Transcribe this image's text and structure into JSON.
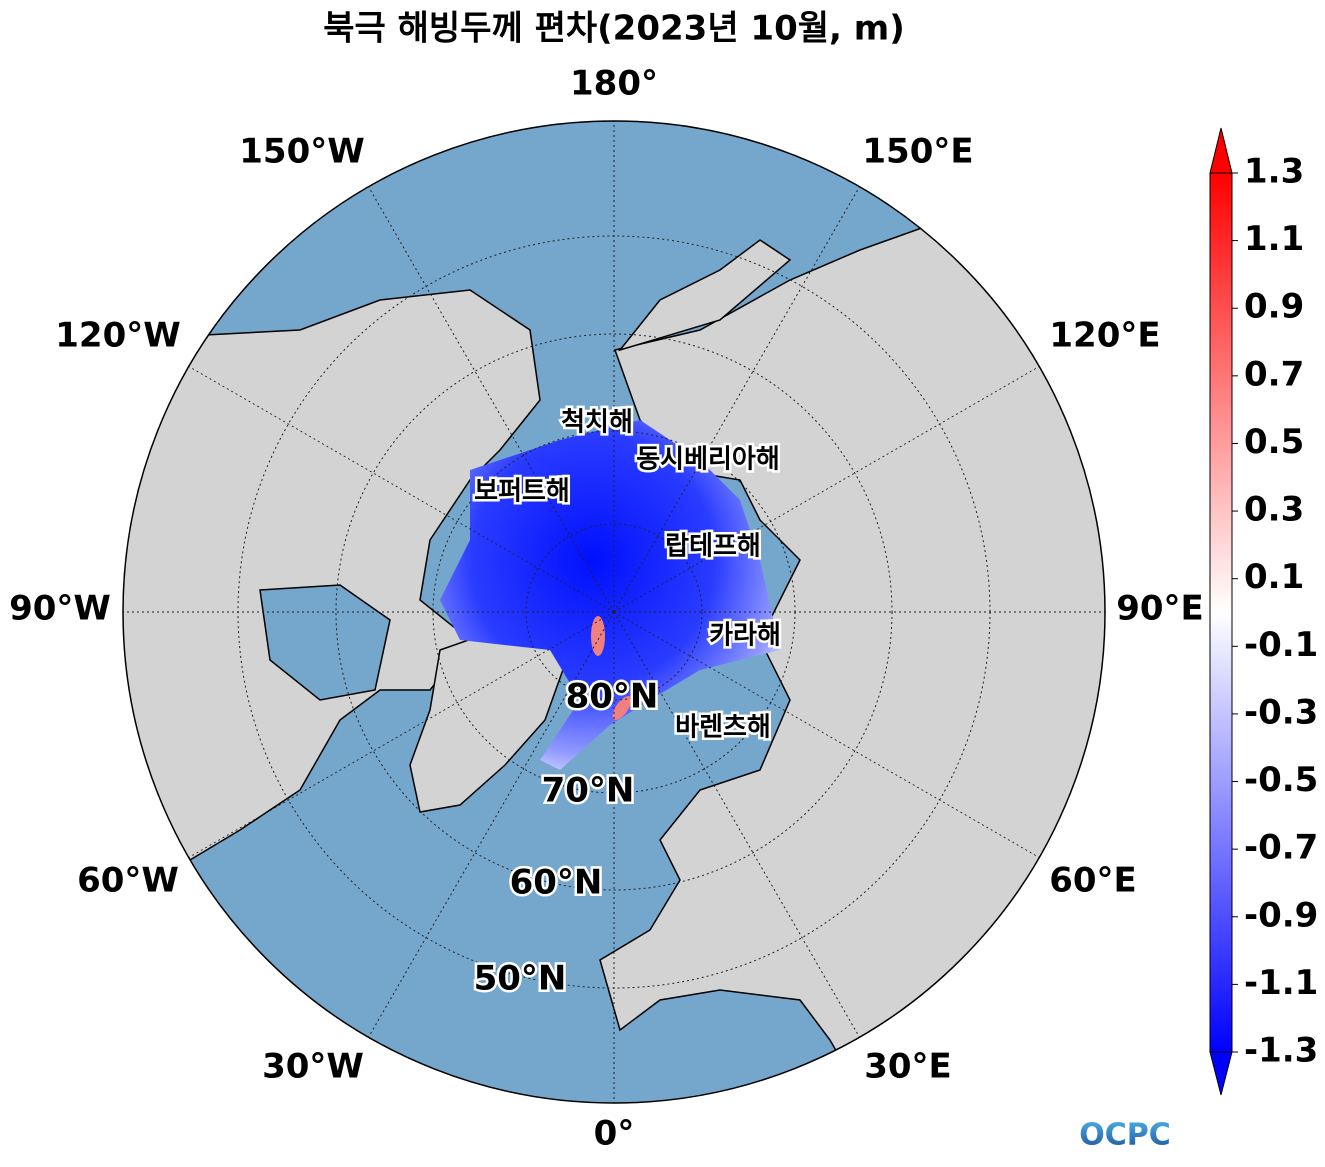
{
  "title": "북극 해빙두께 편차(2023년 10월, m)",
  "longitude_labels": [
    "180°",
    "150°E",
    "120°E",
    "90°E",
    "60°E",
    "30°E",
    "0°",
    "30°W",
    "60°W",
    "90°W",
    "120°W",
    "150°W"
  ],
  "latitude_labels": [
    "80°N",
    "70°N",
    "60°N",
    "50°N"
  ],
  "sea_labels": [
    "척치해",
    "동시베리아해",
    "보퍼트해",
    "랍테프해",
    "카라해",
    "바렌츠해"
  ],
  "colorbar": {
    "lim": [
      -1.3,
      1.3
    ],
    "ticks": [
      1.3,
      1.1,
      0.9,
      0.7,
      0.5,
      0.3,
      0.1,
      -0.1,
      -0.3,
      -0.5,
      -0.7,
      -0.9,
      -1.1,
      -1.3
    ],
    "colors": [
      "#0000ff",
      "#ffffff",
      "#ff0000"
    ]
  },
  "logo": "OCPC"
}
